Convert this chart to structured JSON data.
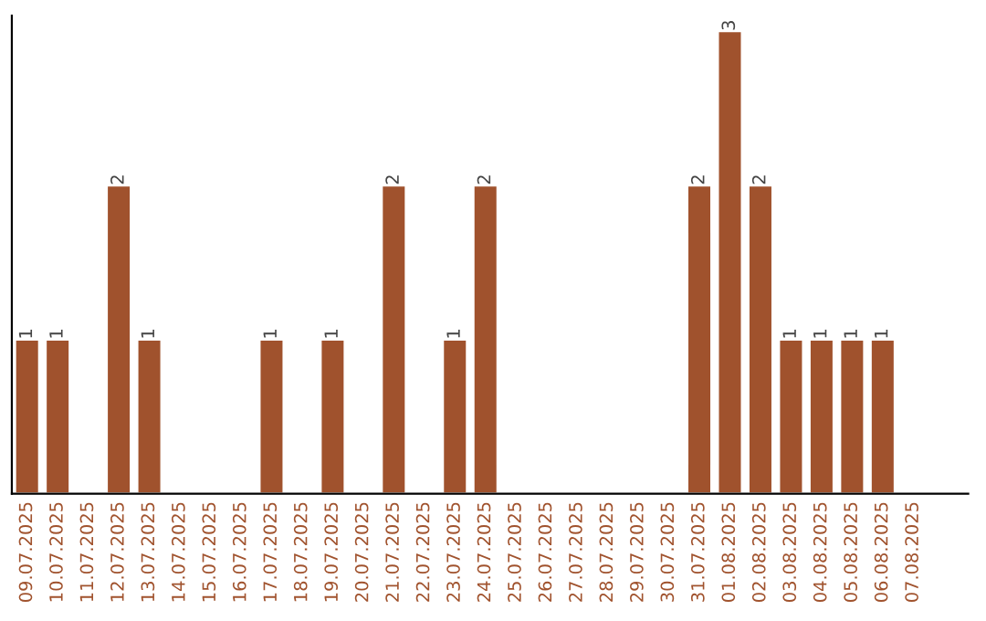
{
  "chart_data": {
    "type": "bar",
    "categories": [
      "09.07.2025",
      "10.07.2025",
      "11.07.2025",
      "12.07.2025",
      "13.07.2025",
      "14.07.2025",
      "15.07.2025",
      "16.07.2025",
      "17.07.2025",
      "18.07.2025",
      "19.07.2025",
      "20.07.2025",
      "21.07.2025",
      "22.07.2025",
      "23.07.2025",
      "24.07.2025",
      "25.07.2025",
      "26.07.2025",
      "27.07.2025",
      "28.07.2025",
      "29.07.2025",
      "30.07.2025",
      "31.07.2025",
      "01.08.2025",
      "02.08.2025",
      "03.08.2025",
      "04.08.2025",
      "05.08.2025",
      "06.08.2025",
      "07.08.2025"
    ],
    "values": [
      1,
      1,
      0,
      2,
      1,
      0,
      0,
      0,
      1,
      0,
      1,
      0,
      2,
      0,
      1,
      2,
      0,
      0,
      0,
      0,
      0,
      0,
      2,
      3,
      2,
      1,
      1,
      1,
      1,
      0
    ],
    "value_labels": [
      "1",
      "1",
      null,
      "2",
      "1",
      null,
      null,
      null,
      "1",
      null,
      "1",
      null,
      "2",
      null,
      "1",
      "2",
      null,
      null,
      null,
      null,
      null,
      null,
      "2",
      "3",
      "2",
      "1",
      "1",
      "1",
      "1",
      null
    ],
    "color": "#a0522d",
    "ylim": [
      0,
      3.1
    ],
    "tick_labels": "x",
    "grid": false,
    "legend": false
  }
}
